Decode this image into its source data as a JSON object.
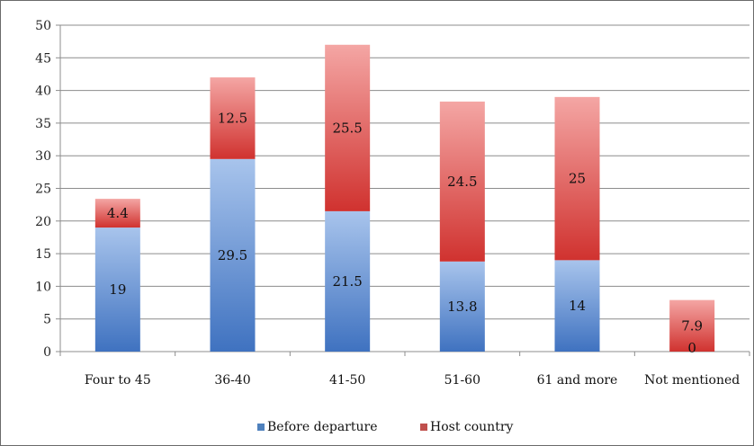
{
  "chart_data": {
    "type": "bar",
    "stacked": true,
    "categories": [
      "Four to 45",
      "36-40",
      "41-50",
      "51-60",
      "61 and more",
      "Not mentioned"
    ],
    "series": [
      {
        "name": "Before departure",
        "values": [
          19,
          29.5,
          21.5,
          13.8,
          14,
          0
        ],
        "labels": [
          "19",
          "29.5",
          "21.5",
          "13.8",
          "14",
          "0"
        ],
        "color": "#4f81bd"
      },
      {
        "name": "Host country",
        "values": [
          4.4,
          12.5,
          25.5,
          24.5,
          25,
          7.9
        ],
        "labels": [
          "4.4",
          "12.5",
          "25.5",
          "24.5",
          "25",
          "7.9"
        ],
        "color": "#c0504d"
      }
    ],
    "ylim": [
      0,
      50
    ],
    "yticks": [
      "0",
      "5",
      "10",
      "15",
      "20",
      "25",
      "30",
      "35",
      "40",
      "45",
      "50"
    ],
    "grid": true,
    "legend_position": "bottom"
  }
}
